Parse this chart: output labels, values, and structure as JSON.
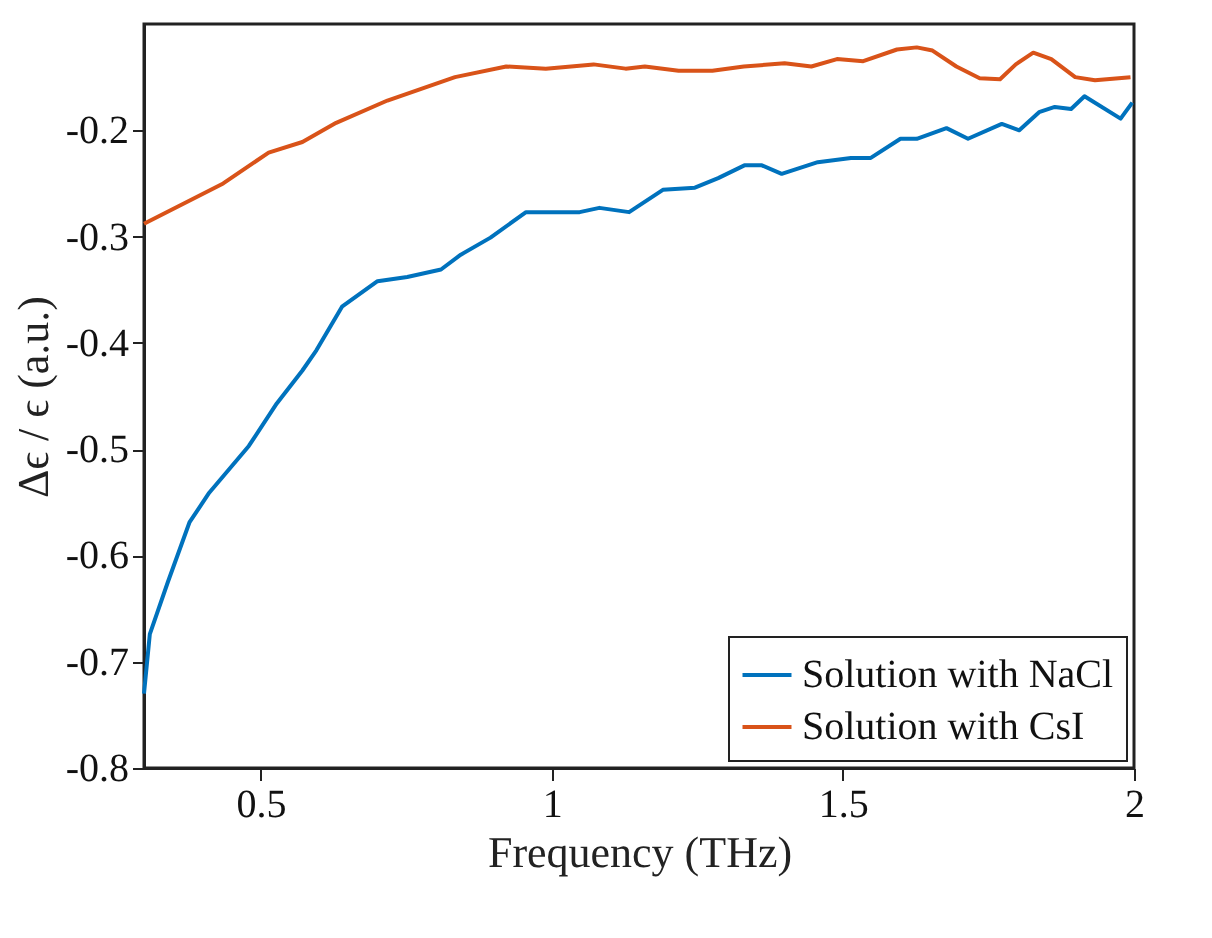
{
  "chart_data": {
    "type": "line",
    "xlabel": "Frequency (THz)",
    "ylabel": "Δϵ / ϵ (a.u.)",
    "xlim": [
      0.3,
      2
    ],
    "xticks": [
      0.5,
      1,
      1.5,
      2
    ],
    "ylim": [
      -0.8,
      -0.1
    ],
    "yticks": [
      -0.8,
      -0.7,
      -0.6,
      -0.5,
      -0.4,
      -0.3,
      -0.2
    ],
    "grid": false,
    "legend": "bottom right",
    "line_style": "solid",
    "marker": "none",
    "series": [
      {
        "name": "Solution with NaCl",
        "color": "#0072bd",
        "x": [
          0.3,
          0.31,
          0.341,
          0.378,
          0.412,
          0.48,
          0.528,
          0.572,
          0.596,
          0.64,
          0.701,
          0.752,
          0.81,
          0.844,
          0.895,
          0.956,
          1.048,
          1.082,
          1.133,
          1.191,
          1.246,
          1.286,
          1.331,
          1.361,
          1.395,
          1.457,
          1.514,
          1.548,
          1.599,
          1.627,
          1.678,
          1.715,
          1.773,
          1.803,
          1.837,
          1.864,
          1.892,
          1.915,
          1.977,
          1.997
        ],
        "values": [
          -0.73,
          -0.674,
          -0.625,
          -0.569,
          -0.541,
          -0.497,
          -0.457,
          -0.426,
          -0.407,
          -0.366,
          -0.342,
          -0.338,
          -0.331,
          -0.317,
          -0.301,
          -0.277,
          -0.277,
          -0.273,
          -0.277,
          -0.256,
          -0.254,
          -0.245,
          -0.233,
          -0.233,
          -0.241,
          -0.23,
          -0.226,
          -0.226,
          -0.208,
          -0.208,
          -0.198,
          -0.208,
          -0.194,
          -0.2,
          -0.183,
          -0.178,
          -0.18,
          -0.168,
          -0.189,
          -0.174
        ]
      },
      {
        "name": "Solution with CsI",
        "color": "#d95319",
        "x": [
          0.3,
          0.436,
          0.514,
          0.572,
          0.63,
          0.718,
          0.834,
          0.922,
          0.99,
          1.072,
          1.127,
          1.16,
          1.218,
          1.276,
          1.33,
          1.4,
          1.446,
          1.49,
          1.535,
          1.593,
          1.627,
          1.654,
          1.695,
          1.735,
          1.77,
          1.797,
          1.827,
          1.858,
          1.899,
          1.933,
          1.994
        ],
        "values": [
          -0.288,
          -0.25,
          -0.221,
          -0.211,
          -0.193,
          -0.172,
          -0.15,
          -0.14,
          -0.142,
          -0.138,
          -0.142,
          -0.14,
          -0.144,
          -0.144,
          -0.14,
          -0.137,
          -0.14,
          -0.133,
          -0.135,
          -0.124,
          -0.122,
          -0.125,
          -0.14,
          -0.151,
          -0.152,
          -0.138,
          -0.127,
          -0.133,
          -0.15,
          -0.153,
          -0.15
        ]
      }
    ]
  }
}
